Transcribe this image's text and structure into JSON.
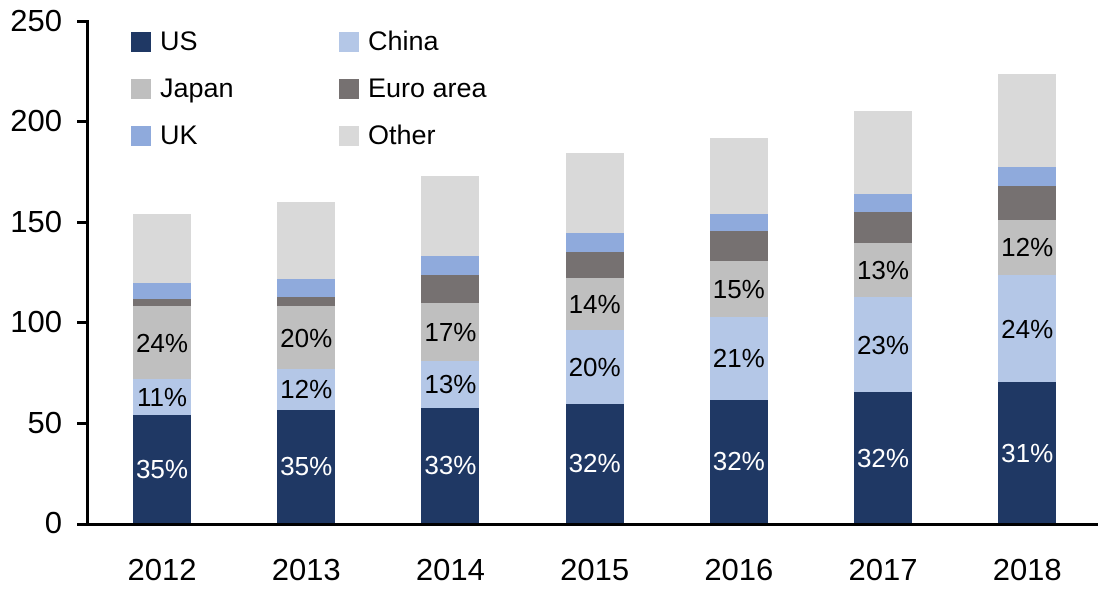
{
  "chart_data": {
    "type": "bar",
    "stacked": true,
    "title": "",
    "xlabel": "",
    "ylabel": "",
    "categories": [
      "2012",
      "2013",
      "2014",
      "2015",
      "2016",
      "2017",
      "2018"
    ],
    "series": [
      {
        "name": "US",
        "color": "#1F3864",
        "values": [
          54,
          56.5,
          57.5,
          59.5,
          61.5,
          65,
          70
        ],
        "segment_labels": [
          "35%",
          "35%",
          "33%",
          "32%",
          "32%",
          "32%",
          "31%"
        ],
        "label_color": "#FFFFFF"
      },
      {
        "name": "China",
        "color": "#B4C7E7",
        "values": [
          17.5,
          20,
          23,
          36.5,
          41,
          47.5,
          53.5
        ],
        "segment_labels": [
          "11%",
          "12%",
          "13%",
          "20%",
          "21%",
          "23%",
          "24%"
        ],
        "label_color": "#000000"
      },
      {
        "name": "Japan",
        "color": "#BFBFBF",
        "values": [
          36.5,
          31.5,
          29,
          26,
          28,
          27,
          27.5
        ],
        "segment_labels": [
          "24%",
          "20%",
          "17%",
          "14%",
          "15%",
          "13%",
          "12%"
        ],
        "label_color": "#000000"
      },
      {
        "name": "Euro area",
        "color": "#767171",
        "values": [
          3.5,
          4.5,
          14,
          13,
          15,
          15.5,
          17
        ],
        "segment_labels": [
          "",
          "",
          "",
          "",
          "",
          "",
          ""
        ],
        "label_color": "#000000"
      },
      {
        "name": "UK",
        "color": "#8FAADC",
        "values": [
          8,
          9,
          9.5,
          9.5,
          8.5,
          9,
          9.5
        ],
        "segment_labels": [
          "",
          "",
          "",
          "",
          "",
          "",
          ""
        ],
        "label_color": "#000000"
      },
      {
        "name": "Other",
        "color": "#D9D9D9",
        "values": [
          34.5,
          38.5,
          40,
          40,
          37.5,
          41,
          46
        ],
        "segment_labels": [
          "",
          "",
          "",
          "",
          "",
          "",
          ""
        ],
        "label_color": "#000000"
      }
    ],
    "totals": [
      154,
      160,
      173,
      184.5,
      191.5,
      205,
      223.5
    ],
    "ylim": [
      0,
      250
    ],
    "y_tick_labels": [
      "250",
      "200",
      "150",
      "100",
      "50",
      "0"
    ],
    "grid": false,
    "legend_position": "top-left",
    "legend_columns": 2,
    "axis_color": "#000000"
  }
}
